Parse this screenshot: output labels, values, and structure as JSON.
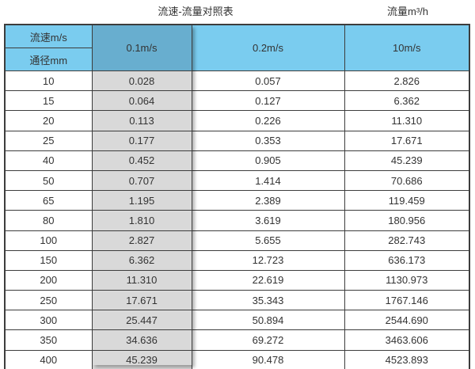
{
  "header": {
    "table_title": "流速-流量对照表",
    "unit_title": "流量m³/h"
  },
  "table": {
    "corner_top": "流速m/s",
    "corner_bottom": "通径mm",
    "velocity_headers": [
      "0.1m/s",
      "0.2m/s",
      "10m/s"
    ],
    "rows": [
      {
        "diameter": "10",
        "values": [
          "0.028",
          "0.057",
          "2.826"
        ]
      },
      {
        "diameter": "15",
        "values": [
          "0.064",
          "0.127",
          "6.362"
        ]
      },
      {
        "diameter": "20",
        "values": [
          "0.113",
          "0.226",
          "11.310"
        ]
      },
      {
        "diameter": "25",
        "values": [
          "0.177",
          "0.353",
          "17.671"
        ]
      },
      {
        "diameter": "40",
        "values": [
          "0.452",
          "0.905",
          "45.239"
        ]
      },
      {
        "diameter": "50",
        "values": [
          "0.707",
          "1.414",
          "70.686"
        ]
      },
      {
        "diameter": "65",
        "values": [
          "1.195",
          "2.389",
          "119.459"
        ]
      },
      {
        "diameter": "80",
        "values": [
          "1.810",
          "3.619",
          "180.956"
        ]
      },
      {
        "diameter": "100",
        "values": [
          "2.827",
          "5.655",
          "282.743"
        ]
      },
      {
        "diameter": "150",
        "values": [
          "6.362",
          "12.723",
          "636.173"
        ]
      },
      {
        "diameter": "200",
        "values": [
          "11.310",
          "22.619",
          "1130.973"
        ]
      },
      {
        "diameter": "250",
        "values": [
          "17.671",
          "35.343",
          "1767.146"
        ]
      },
      {
        "diameter": "300",
        "values": [
          "25.447",
          "50.894",
          "2544.690"
        ]
      },
      {
        "diameter": "350",
        "values": [
          "34.636",
          "69.272",
          "3463.606"
        ]
      },
      {
        "diameter": "400",
        "values": [
          "45.239",
          "90.478",
          "4523.893"
        ]
      }
    ]
  },
  "colors": {
    "header_blue": "#7accef",
    "selected_header_blue": "#68aecf",
    "selected_column_gray": "#d9d9d9",
    "border": "#3d3d3d",
    "text": "#333333"
  },
  "chart_data": {
    "type": "table",
    "title": "流速-流量对照表",
    "unit_label": "流量m³/h",
    "row_axis_label": "通径mm",
    "col_axis_label": "流速m/s",
    "columns": [
      "0.1m/s",
      "0.2m/s",
      "10m/s"
    ],
    "diameters_mm": [
      10,
      15,
      20,
      25,
      40,
      50,
      65,
      80,
      100,
      150,
      200,
      250,
      300,
      350,
      400
    ],
    "series": [
      {
        "name": "0.1m/s",
        "values": [
          0.028,
          0.064,
          0.113,
          0.177,
          0.452,
          0.707,
          1.195,
          1.81,
          2.827,
          6.362,
          11.31,
          17.671,
          25.447,
          34.636,
          45.239
        ]
      },
      {
        "name": "0.2m/s",
        "values": [
          0.057,
          0.127,
          0.226,
          0.353,
          0.905,
          1.414,
          2.389,
          3.619,
          5.655,
          12.723,
          22.619,
          35.343,
          50.894,
          69.272,
          90.478
        ]
      },
      {
        "name": "10m/s",
        "values": [
          2.826,
          6.362,
          11.31,
          17.671,
          45.239,
          70.686,
          119.459,
          180.956,
          282.743,
          636.173,
          1130.973,
          1767.146,
          2544.69,
          3463.606,
          4523.893
        ]
      }
    ]
  }
}
